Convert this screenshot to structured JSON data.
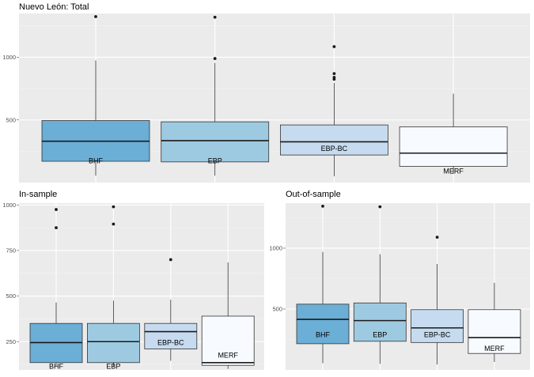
{
  "chart_data": [
    {
      "type": "boxplot",
      "title": "Nuevo León: Total",
      "xlabel": "",
      "ylabel": "",
      "ylim": [
        0,
        1350
      ],
      "yticks": [
        500,
        1000
      ],
      "grid": true,
      "legend": "none",
      "categories": [
        "BHF",
        "EBP",
        "EBP-BC",
        "MERF"
      ],
      "colors": [
        "#6baed6",
        "#9ecae1",
        "#c6dbef",
        "#f7fbff"
      ],
      "boxes": [
        {
          "name": "BHF",
          "whisker_low": 55,
          "q1": 170,
          "median": 330,
          "q3": 495,
          "whisker_high": 975,
          "outliers": [
            1325
          ]
        },
        {
          "name": "EBP",
          "whisker_low": 55,
          "q1": 165,
          "median": 335,
          "q3": 485,
          "whisker_high": 955,
          "outliers": [
            1320,
            990
          ]
        },
        {
          "name": "EBP-BC",
          "whisker_low": 50,
          "q1": 220,
          "median": 325,
          "q3": 460,
          "whisker_high": 795,
          "outliers": [
            1085,
            870,
            840,
            825
          ]
        },
        {
          "name": "MERF",
          "whisker_low": 70,
          "q1": 130,
          "median": 235,
          "q3": 445,
          "whisker_high": 710,
          "outliers": []
        }
      ]
    },
    {
      "type": "boxplot",
      "title": "In-sample",
      "xlabel": "",
      "ylabel": "",
      "ylim": [
        95,
        1010
      ],
      "yticks": [
        250,
        500,
        750,
        1000
      ],
      "grid": true,
      "legend": "none",
      "categories": [
        "BHF",
        "EBP",
        "EBP-BC",
        "MERF"
      ],
      "colors": [
        "#6baed6",
        "#9ecae1",
        "#c6dbef",
        "#f7fbff"
      ],
      "boxes": [
        {
          "name": "BHF",
          "whisker_low": 115,
          "q1": 135,
          "median": 245,
          "q3": 350,
          "whisker_high": 465,
          "outliers": [
            975,
            875
          ]
        },
        {
          "name": "EBP",
          "whisker_low": 110,
          "q1": 135,
          "median": 250,
          "q3": 350,
          "whisker_high": 475,
          "outliers": [
            990,
            895
          ]
        },
        {
          "name": "EBP-BC",
          "whisker_low": 145,
          "q1": 210,
          "median": 305,
          "q3": 350,
          "whisker_high": 480,
          "outliers": [
            700
          ]
        },
        {
          "name": "MERF",
          "whisker_low": 100,
          "q1": 120,
          "median": 135,
          "q3": 390,
          "whisker_high": 685,
          "outliers": []
        }
      ]
    },
    {
      "type": "boxplot",
      "title": "Out-of-sample",
      "xlabel": "",
      "ylabel": "",
      "ylim": [
        0,
        1370
      ],
      "yticks": [
        500,
        1000
      ],
      "grid": true,
      "legend": "none",
      "categories": [
        "BHF",
        "EBP",
        "EBP-BC",
        "MERF"
      ],
      "colors": [
        "#6baed6",
        "#9ecae1",
        "#c6dbef",
        "#f7fbff"
      ],
      "boxes": [
        {
          "name": "BHF",
          "whisker_low": 55,
          "q1": 215,
          "median": 415,
          "q3": 540,
          "whisker_high": 970,
          "outliers": [
            1345
          ]
        },
        {
          "name": "EBP",
          "whisker_low": 50,
          "q1": 235,
          "median": 405,
          "q3": 550,
          "whisker_high": 950,
          "outliers": [
            1340
          ]
        },
        {
          "name": "EBP-BC",
          "whisker_low": 45,
          "q1": 225,
          "median": 345,
          "q3": 495,
          "whisker_high": 870,
          "outliers": [
            1090
          ]
        },
        {
          "name": "MERF",
          "whisker_low": 65,
          "q1": 135,
          "median": 265,
          "q3": 495,
          "whisker_high": 715,
          "outliers": []
        }
      ]
    }
  ]
}
